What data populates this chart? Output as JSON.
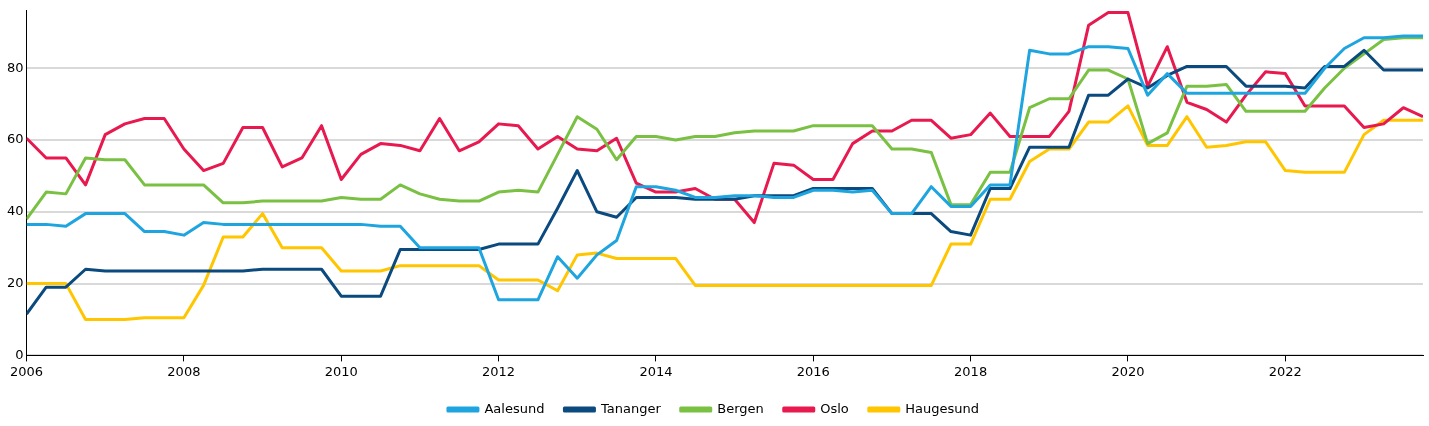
{
  "chart_data": {
    "type": "line",
    "x": [
      2006,
      2006.25,
      2006.5,
      2006.75,
      2007,
      2007.25,
      2007.5,
      2007.75,
      2008,
      2008.25,
      2008.5,
      2008.75,
      2009,
      2009.25,
      2009.5,
      2009.75,
      2010,
      2010.25,
      2010.5,
      2010.75,
      2011,
      2011.25,
      2011.5,
      2011.75,
      2012,
      2012.25,
      2012.5,
      2012.75,
      2013,
      2013.25,
      2013.5,
      2013.75,
      2014,
      2014.25,
      2014.5,
      2014.75,
      2015,
      2015.25,
      2015.5,
      2015.75,
      2016,
      2016.25,
      2016.5,
      2016.75,
      2017,
      2017.25,
      2017.5,
      2017.75,
      2018,
      2018.25,
      2018.5,
      2018.75,
      2019,
      2019.25,
      2019.5,
      2019.75,
      2020,
      2020.25,
      2020.5,
      2020.75,
      2021,
      2021.25,
      2021.5,
      2021.75,
      2022,
      2022.25,
      2022.5,
      2022.75,
      2023,
      2023.25,
      2023.5,
      2023.75
    ],
    "series": [
      {
        "name": "Aalesund",
        "color": "#1ea5e0",
        "values": [
          36.5,
          36.5,
          36,
          39.5,
          39.5,
          39.5,
          34.5,
          34.5,
          33.5,
          37,
          36.5,
          36.5,
          36.5,
          36.5,
          36.5,
          36.5,
          36.5,
          36.5,
          36,
          36,
          30,
          30,
          30,
          30,
          15.5,
          15.5,
          15.5,
          27.5,
          21.5,
          28,
          32,
          47,
          47,
          46,
          44,
          44,
          44.5,
          44.5,
          44,
          44,
          46,
          46,
          45.5,
          46,
          39.5,
          39.5,
          47,
          41.5,
          41.5,
          47.5,
          47.5,
          85,
          84,
          84,
          86,
          86,
          85.5,
          72.5,
          78.5,
          73,
          73,
          73,
          73,
          73,
          73,
          73,
          80,
          85.5,
          88.5,
          88.5,
          89,
          89
        ]
      },
      {
        "name": "Tananger",
        "color": "#0b4a7e",
        "values": [
          11.5,
          19,
          19,
          24,
          23.5,
          23.5,
          23.5,
          23.5,
          23.5,
          23.5,
          23.5,
          23.5,
          24,
          24,
          24,
          24,
          16.5,
          16.5,
          16.5,
          29.5,
          29.5,
          29.5,
          29.5,
          29.5,
          31,
          31,
          31,
          41,
          51.5,
          40,
          38.5,
          44,
          44,
          44,
          43.5,
          43.5,
          43.5,
          44.5,
          44.5,
          44.5,
          46.5,
          46.5,
          46.5,
          46.5,
          39.5,
          39.5,
          39.5,
          34.5,
          33.5,
          46.5,
          46.5,
          58,
          58,
          58,
          72.5,
          72.5,
          77,
          74.5,
          78,
          80.5,
          80.5,
          80.5,
          75,
          75,
          75,
          74.5,
          80.5,
          80.5,
          85,
          79.5,
          79.5,
          79.5
        ]
      },
      {
        "name": "Bergen",
        "color": "#7ac143",
        "values": [
          38,
          45.5,
          45,
          55,
          54.5,
          54.5,
          47.5,
          47.5,
          47.5,
          47.5,
          42.5,
          42.5,
          43,
          43,
          43,
          43,
          44,
          43.5,
          43.5,
          47.5,
          45,
          43.5,
          43,
          43,
          45.5,
          46,
          45.5,
          56,
          66.5,
          63,
          54.5,
          61,
          61,
          60,
          61,
          61,
          62,
          62.5,
          62.5,
          62.5,
          64,
          64,
          64,
          64,
          57.5,
          57.5,
          56.5,
          42,
          42,
          51,
          51,
          69,
          71.5,
          71.5,
          79.5,
          79.5,
          77,
          59,
          62,
          75,
          75,
          75.5,
          68,
          68,
          68,
          68,
          74.5,
          80,
          84,
          88,
          88.5,
          88.5
        ]
      },
      {
        "name": "Oslo",
        "color": "#e8194f",
        "values": [
          60.5,
          55,
          55,
          47.5,
          61.5,
          64.5,
          66,
          66,
          57.5,
          51.5,
          53.5,
          63.5,
          63.5,
          52.5,
          55,
          64,
          49,
          56,
          59,
          58.5,
          57,
          66,
          57,
          59.5,
          64.5,
          64,
          57.5,
          61,
          57.5,
          57,
          60.5,
          48,
          45.5,
          45.5,
          46.5,
          43.5,
          43.5,
          37,
          53.5,
          53,
          49,
          49,
          59,
          62.5,
          62.5,
          65.5,
          65.5,
          60.5,
          61.5,
          67.5,
          61,
          61,
          61,
          68,
          92,
          95.5,
          95.5,
          75,
          86,
          70.5,
          68.5,
          65,
          72.5,
          79,
          78.5,
          69.5,
          69.5,
          69.5,
          63.5,
          64.5,
          69,
          66.5
        ]
      },
      {
        "name": "Haugesund",
        "color": "#ffc600",
        "values": [
          20,
          20,
          20,
          10,
          10,
          10,
          10.5,
          10.5,
          10.5,
          19.5,
          33,
          33,
          39.5,
          30,
          30,
          30,
          23.5,
          23.5,
          23.5,
          25,
          25,
          25,
          25,
          25,
          21,
          21,
          21,
          18,
          28,
          28.5,
          27,
          27,
          27,
          27,
          19.5,
          19.5,
          19.5,
          19.5,
          19.5,
          19.5,
          19.5,
          19.5,
          19.5,
          19.5,
          19.5,
          19.5,
          19.5,
          31,
          31,
          43.5,
          43.5,
          54,
          57.5,
          57.5,
          65,
          65,
          69.5,
          58.5,
          58.5,
          66.5,
          58,
          58.5,
          59.5,
          59.5,
          51.5,
          51,
          51,
          51,
          61.5,
          65.5,
          65.5,
          65.5
        ]
      }
    ],
    "xlim": [
      2006,
      2023.75
    ],
    "xticks": [
      2006,
      2008,
      2010,
      2012,
      2014,
      2016,
      2018,
      2020,
      2022
    ],
    "ylim": [
      0,
      96
    ],
    "yticks": [
      0,
      20,
      40,
      60,
      80
    ],
    "grid": "y",
    "legend": "bottom",
    "marker": "none",
    "line_style": "solid"
  }
}
